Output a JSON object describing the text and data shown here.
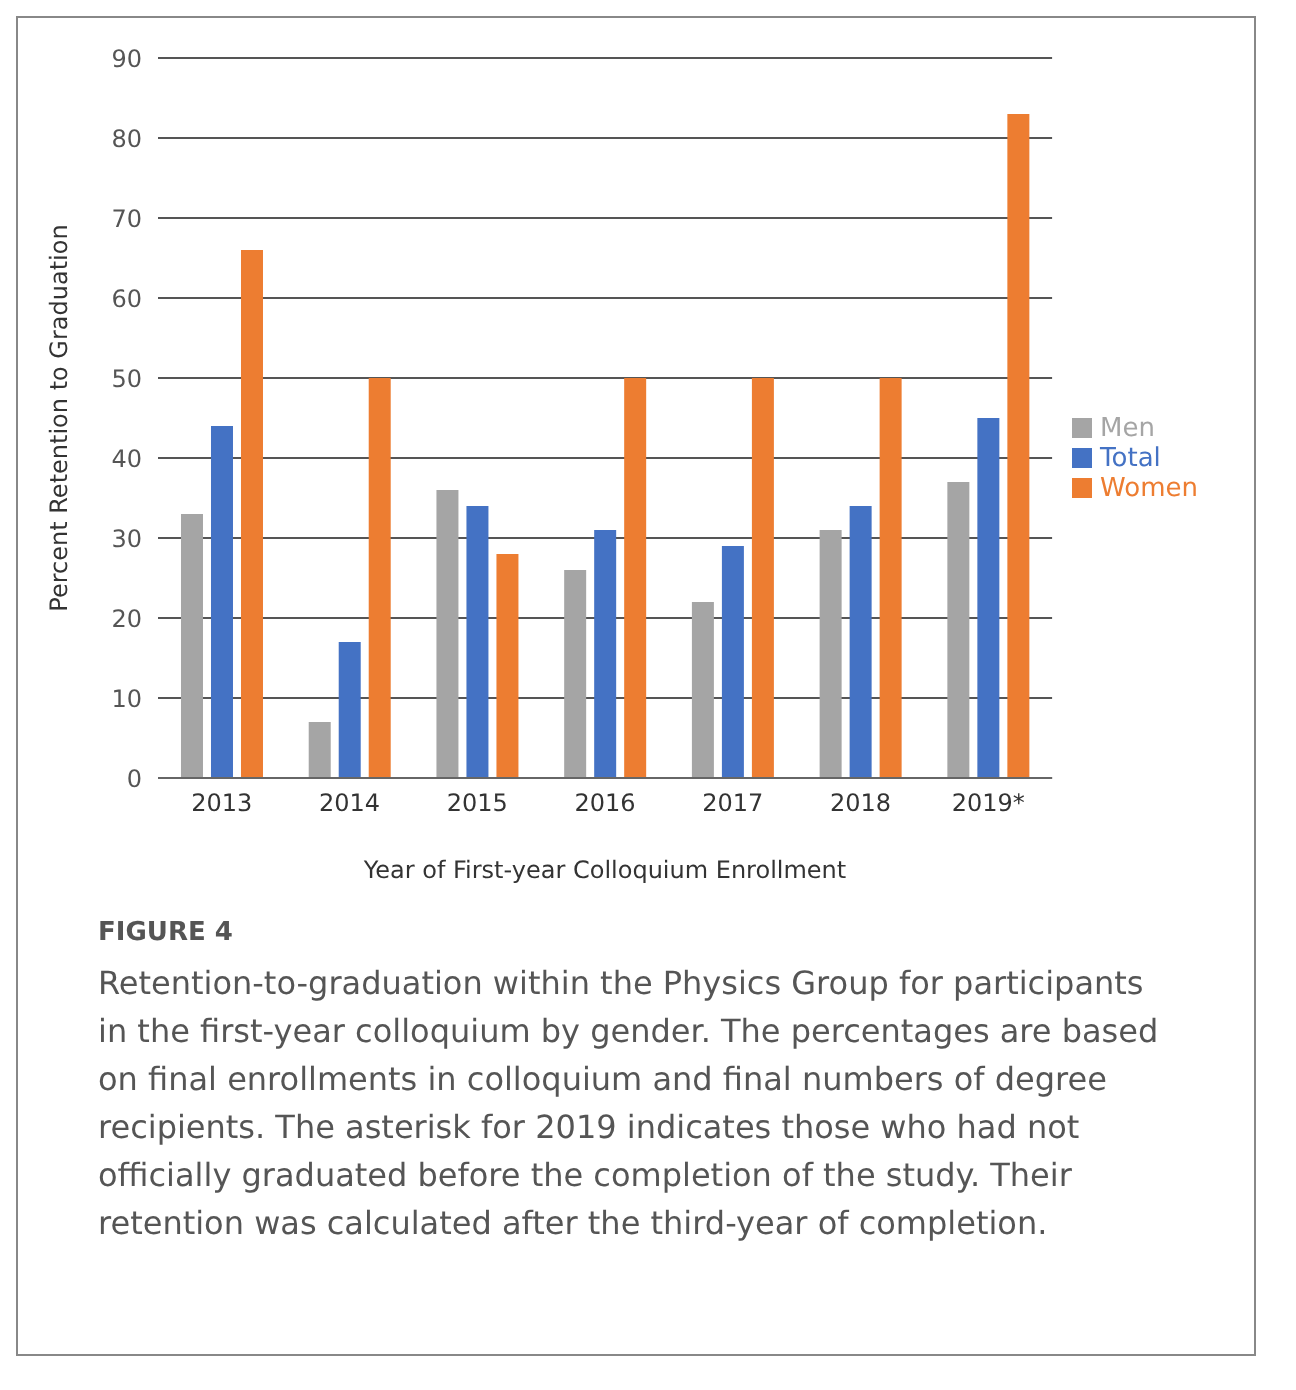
{
  "chart_data": {
    "type": "bar",
    "xlabel": "Year of First-year Colloquium Enrollment",
    "ylabel": "Percent Retention to Graduation",
    "categories": [
      "2013",
      "2014",
      "2015",
      "2016",
      "2017",
      "2018",
      "2019*"
    ],
    "series": [
      {
        "name": "Men",
        "color": "#a5a5a5",
        "values": [
          33,
          7,
          36,
          26,
          22,
          31,
          37
        ]
      },
      {
        "name": "Total",
        "color": "#4472c4",
        "values": [
          44,
          17,
          34,
          31,
          29,
          34,
          45
        ]
      },
      {
        "name": "Women",
        "color": "#ed7d31",
        "values": [
          66,
          50,
          28,
          50,
          50,
          50,
          83
        ]
      }
    ],
    "ylim": [
      0,
      90
    ],
    "yticks": [
      0,
      10,
      20,
      30,
      40,
      50,
      60,
      70,
      80,
      90
    ],
    "grid": "y",
    "legend": "right",
    "annotations": [
      "FIGURE 4",
      "Retention-to-graduation within the Physics Group for participants in the first-year colloquium by gender. The percentages are based on final enrollments in colloquium and final numbers of degree recipients. The asterisk for 2019 indicates those who had not officially graduated before the completion of the study. Their retention was calculated after the third-year of completion."
    ]
  }
}
